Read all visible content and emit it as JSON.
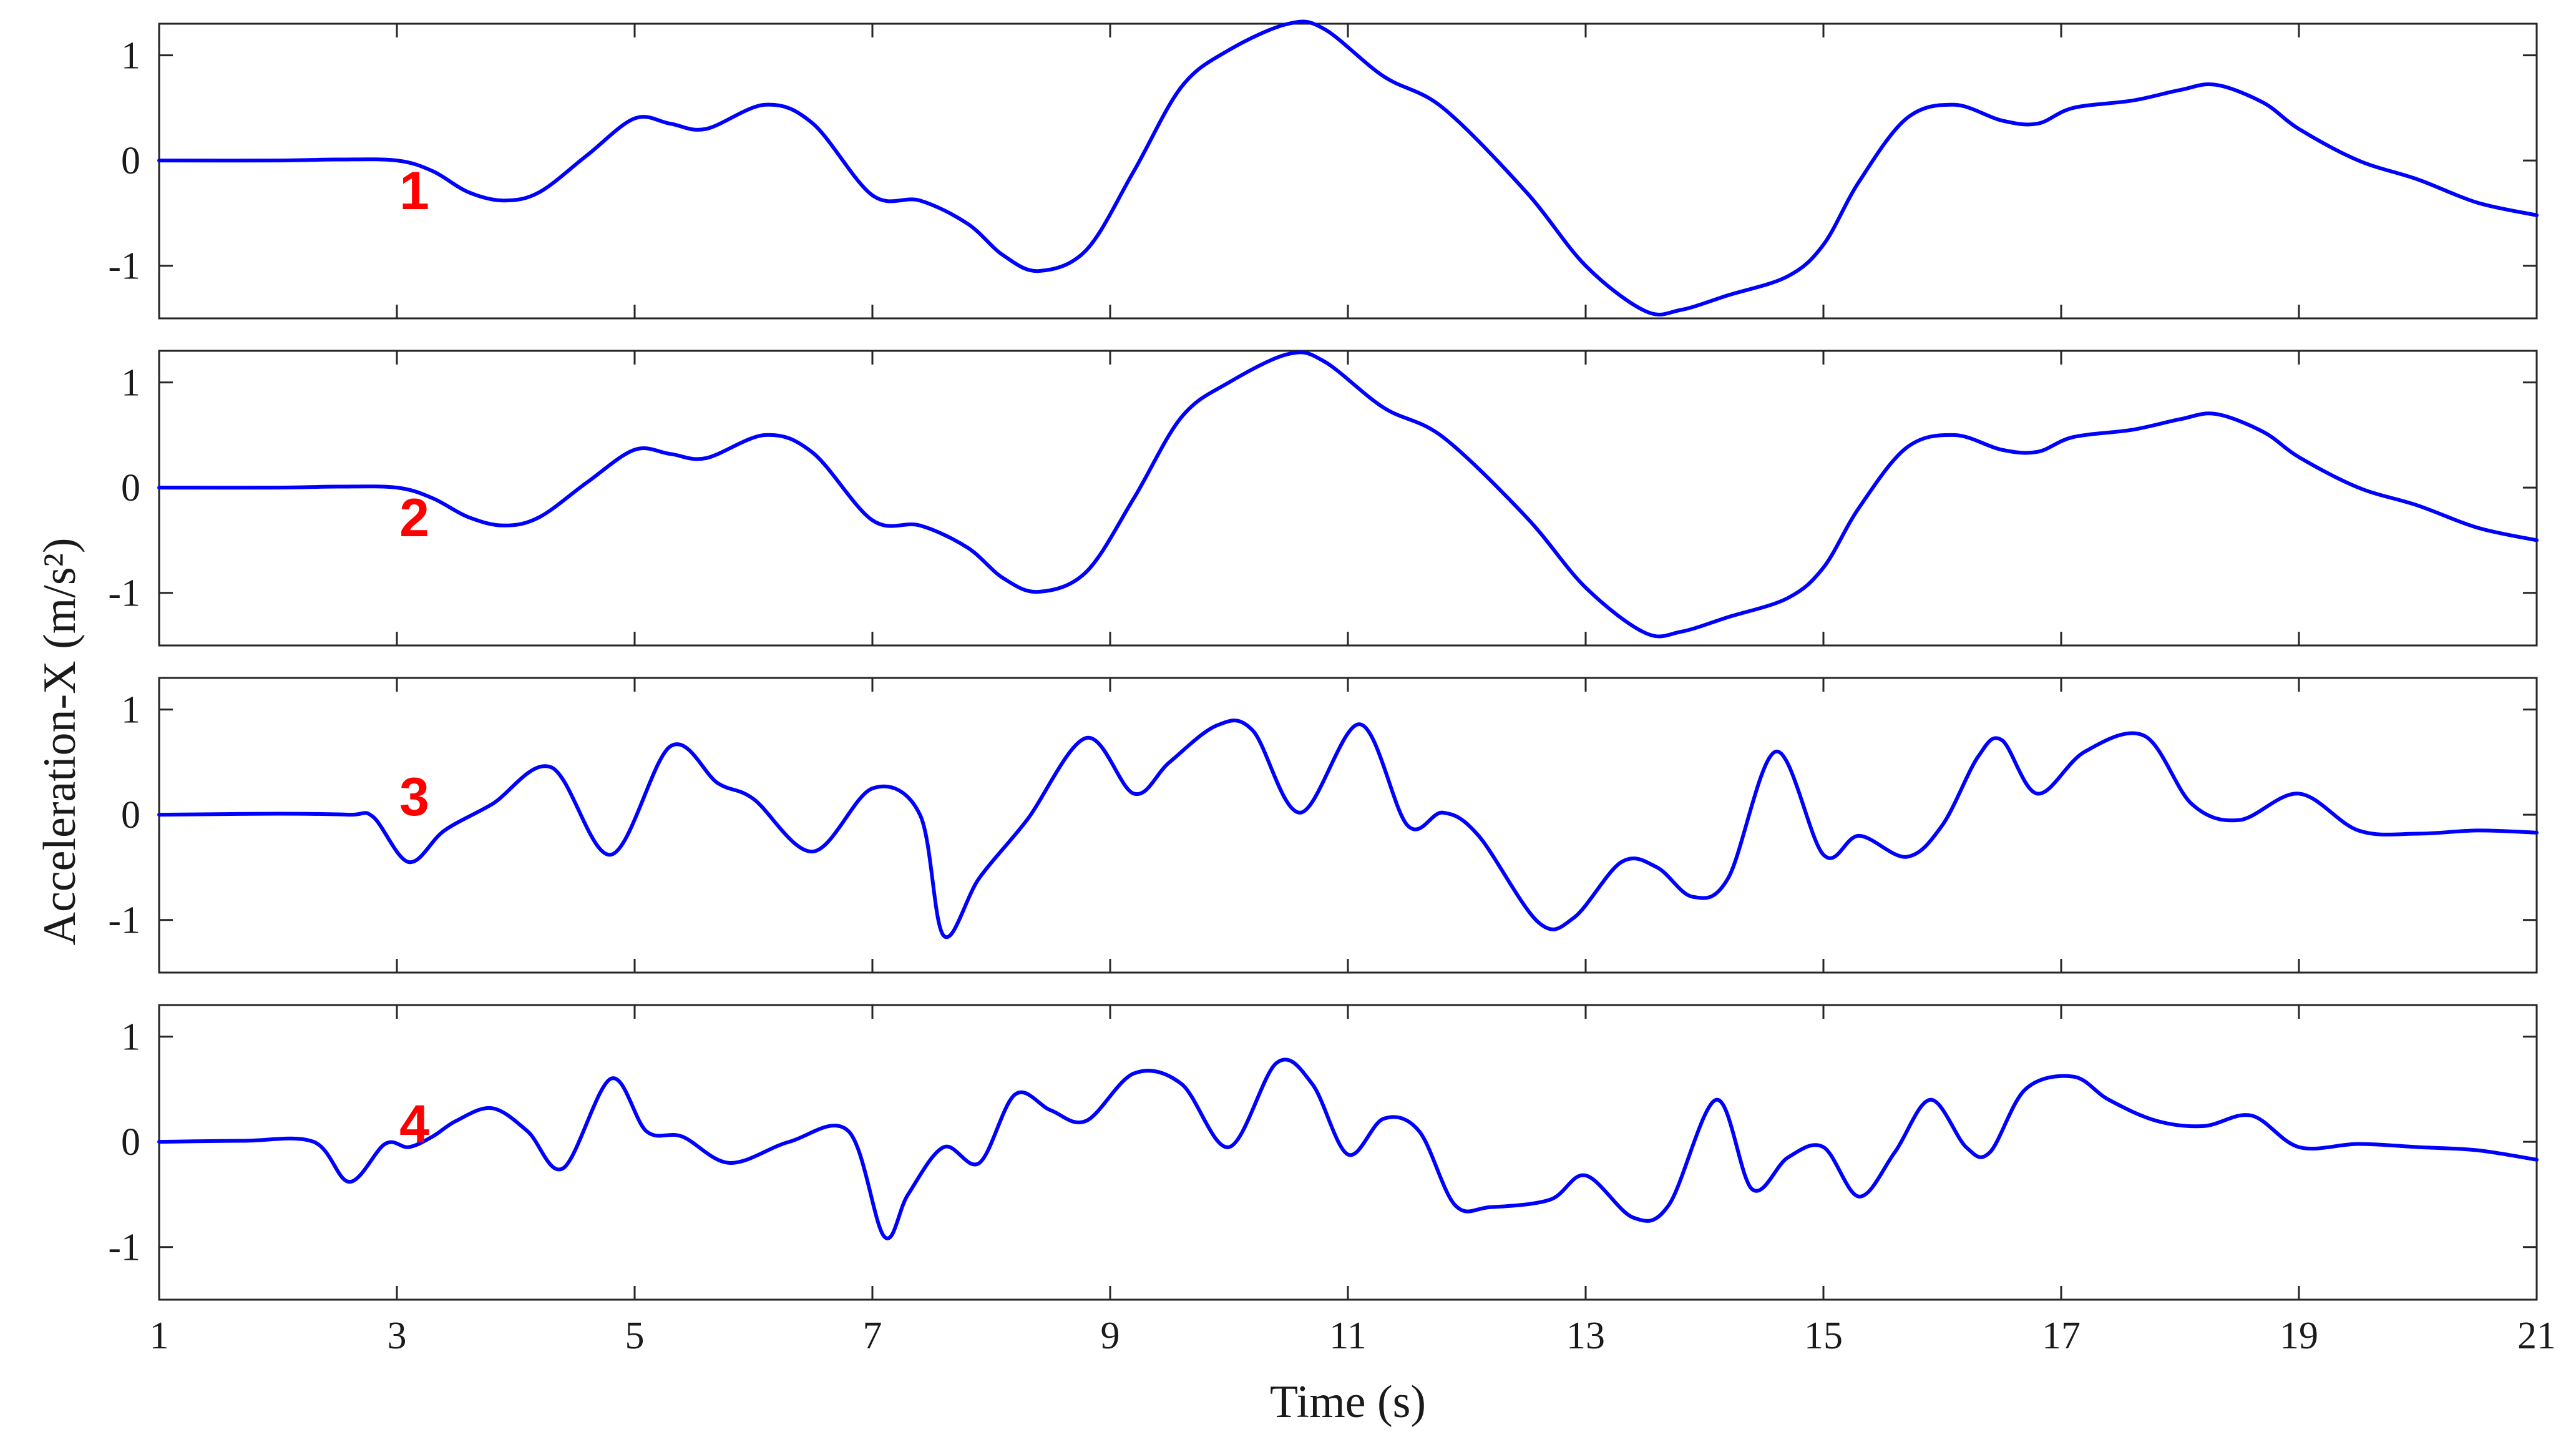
{
  "colors": {
    "trace": "#0000ff",
    "tag": "#ff0000",
    "axes": "#262626"
  },
  "chart_data": {
    "type": "line",
    "layout": "4 vertically stacked panels sharing the x axis",
    "xlabel": "Time (s)",
    "ylabel": "Acceleration-X (m/s²)",
    "xlim": [
      1,
      21
    ],
    "ylim": [
      -1.5,
      1.3
    ],
    "xticks": [
      "1",
      "3",
      "5",
      "7",
      "9",
      "11",
      "13",
      "15",
      "17",
      "19",
      "21"
    ],
    "yticks": [
      "1",
      "0",
      "-1"
    ],
    "grid": false,
    "legend": "none",
    "panels": [
      {
        "tag": "1",
        "x": [
          1,
          2,
          2.5,
          3,
          3.3,
          3.6,
          3.9,
          4.2,
          4.6,
          5.0,
          5.3,
          5.6,
          6.1,
          6.5,
          7.0,
          7.4,
          7.8,
          8.1,
          8.4,
          8.8,
          9.2,
          9.6,
          10.0,
          10.5,
          10.8,
          11.3,
          11.8,
          12.5,
          13.0,
          13.5,
          13.8,
          14.2,
          14.7,
          15.0,
          15.3,
          15.7,
          16.1,
          16.5,
          16.8,
          17.1,
          17.6,
          18.0,
          18.3,
          18.7,
          19.0,
          19.5,
          20.0,
          20.5,
          21.0
        ],
        "y": [
          0,
          0,
          0.01,
          0.0,
          -0.1,
          -0.3,
          -0.38,
          -0.3,
          0.05,
          0.4,
          0.35,
          0.3,
          0.53,
          0.35,
          -0.33,
          -0.38,
          -0.6,
          -0.9,
          -1.05,
          -0.85,
          -0.1,
          0.7,
          1.05,
          1.3,
          1.25,
          0.8,
          0.5,
          -0.3,
          -1.0,
          -1.43,
          -1.42,
          -1.28,
          -1.1,
          -0.8,
          -0.2,
          0.4,
          0.53,
          0.38,
          0.35,
          0.5,
          0.57,
          0.67,
          0.72,
          0.55,
          0.3,
          0.0,
          -0.18,
          -0.4,
          -0.52
        ]
      },
      {
        "tag": "2",
        "x": [
          1,
          2,
          2.5,
          3,
          3.3,
          3.6,
          3.9,
          4.2,
          4.6,
          5.0,
          5.3,
          5.6,
          6.1,
          6.5,
          7.0,
          7.4,
          7.8,
          8.1,
          8.4,
          8.8,
          9.2,
          9.6,
          10.0,
          10.5,
          10.8,
          11.3,
          11.8,
          12.5,
          13.0,
          13.5,
          13.8,
          14.2,
          14.7,
          15.0,
          15.3,
          15.7,
          16.1,
          16.5,
          16.8,
          17.1,
          17.6,
          18.0,
          18.3,
          18.7,
          19.0,
          19.5,
          20.0,
          20.5,
          21.0
        ],
        "y": [
          0,
          0,
          0.01,
          0.0,
          -0.1,
          -0.28,
          -0.36,
          -0.28,
          0.05,
          0.36,
          0.32,
          0.28,
          0.5,
          0.33,
          -0.31,
          -0.36,
          -0.57,
          -0.86,
          -0.99,
          -0.8,
          -0.1,
          0.67,
          1.0,
          1.27,
          1.2,
          0.76,
          0.48,
          -0.28,
          -0.95,
          -1.38,
          -1.37,
          -1.23,
          -1.05,
          -0.76,
          -0.19,
          0.38,
          0.5,
          0.36,
          0.34,
          0.48,
          0.55,
          0.65,
          0.7,
          0.53,
          0.29,
          0.0,
          -0.17,
          -0.38,
          -0.5
        ]
      },
      {
        "tag": "3",
        "x": [
          1,
          2,
          2.6,
          2.8,
          3.1,
          3.4,
          3.8,
          4.3,
          4.8,
          5.3,
          5.7,
          6.0,
          6.5,
          7.0,
          7.4,
          7.6,
          7.9,
          8.3,
          8.8,
          9.2,
          9.5,
          9.9,
          10.2,
          10.6,
          11.1,
          11.5,
          11.8,
          12.1,
          12.6,
          12.9,
          13.3,
          13.6,
          13.9,
          14.2,
          14.6,
          15.0,
          15.3,
          15.7,
          16.0,
          16.3,
          16.5,
          16.8,
          17.2,
          17.7,
          18.1,
          18.5,
          19.0,
          19.5,
          20.0,
          20.5,
          21.0
        ],
        "y": [
          0,
          0.01,
          0.0,
          -0.02,
          -0.45,
          -0.15,
          0.1,
          0.45,
          -0.38,
          0.65,
          0.3,
          0.15,
          -0.35,
          0.25,
          0.0,
          -1.15,
          -0.6,
          -0.05,
          0.73,
          0.2,
          0.5,
          0.85,
          0.8,
          0.02,
          0.86,
          -0.1,
          0.02,
          -0.2,
          -1.02,
          -0.98,
          -0.45,
          -0.5,
          -0.78,
          -0.6,
          0.6,
          -0.38,
          -0.2,
          -0.4,
          -0.1,
          0.55,
          0.71,
          0.2,
          0.6,
          0.75,
          0.1,
          -0.05,
          0.2,
          -0.15,
          -0.18,
          -0.15,
          -0.17
        ]
      },
      {
        "tag": "4",
        "x": [
          1,
          1.7,
          2.3,
          2.6,
          2.9,
          3.1,
          3.3,
          3.5,
          3.8,
          4.1,
          4.4,
          4.8,
          5.1,
          5.4,
          5.8,
          6.3,
          6.8,
          7.1,
          7.3,
          7.6,
          7.9,
          8.2,
          8.5,
          8.8,
          9.2,
          9.6,
          10.0,
          10.4,
          10.7,
          11.0,
          11.3,
          11.6,
          11.9,
          12.2,
          12.7,
          13.0,
          13.4,
          13.7,
          14.1,
          14.4,
          14.7,
          15.0,
          15.3,
          15.6,
          15.9,
          16.2,
          16.4,
          16.7,
          17.1,
          17.4,
          17.8,
          18.2,
          18.6,
          19.0,
          19.5,
          20.0,
          20.5,
          21.0
        ],
        "y": [
          0,
          0.01,
          0.0,
          -0.38,
          -0.02,
          -0.05,
          0.05,
          0.2,
          0.32,
          0.1,
          -0.25,
          0.6,
          0.1,
          0.05,
          -0.2,
          0.0,
          0.1,
          -0.9,
          -0.5,
          -0.05,
          -0.2,
          0.45,
          0.3,
          0.2,
          0.65,
          0.55,
          -0.05,
          0.75,
          0.55,
          -0.12,
          0.22,
          0.1,
          -0.6,
          -0.62,
          -0.55,
          -0.32,
          -0.72,
          -0.6,
          0.4,
          -0.45,
          -0.15,
          -0.05,
          -0.52,
          -0.1,
          0.4,
          -0.05,
          -0.1,
          0.5,
          0.62,
          0.4,
          0.2,
          0.15,
          0.25,
          -0.05,
          -0.02,
          -0.05,
          -0.08,
          -0.17
        ]
      }
    ]
  }
}
